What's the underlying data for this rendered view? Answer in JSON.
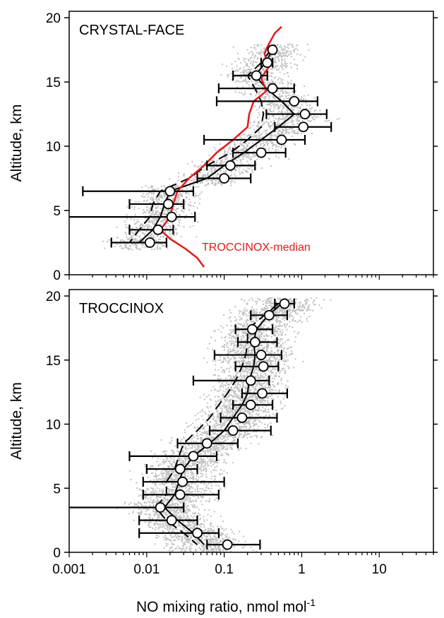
{
  "chart_data": [
    {
      "type": "scatter",
      "title": "CRYSTAL-FACE",
      "ylabel": "Altitude, km",
      "xlabel": "",
      "x_scale": "log",
      "xlim": [
        0.001,
        50
      ],
      "ylim": [
        0,
        20.5
      ],
      "y_ticks": [
        "0",
        "5",
        "10",
        "15",
        "20"
      ],
      "grid": false,
      "colors": {
        "scatter": "#c0c0c0",
        "line": "#000000",
        "median": "#e41a1c"
      },
      "markers": [
        {
          "alt": 17.5,
          "x": 0.42,
          "lo": 0.4,
          "hi": 0.45
        },
        {
          "alt": 16.5,
          "x": 0.36,
          "lo": 0.3,
          "hi": 0.42
        },
        {
          "alt": 15.5,
          "x": 0.26,
          "lo": 0.13,
          "hi": 0.36
        },
        {
          "alt": 14.5,
          "x": 0.42,
          "lo": 0.085,
          "hi": 0.8
        },
        {
          "alt": 13.5,
          "x": 0.8,
          "lo": 0.08,
          "hi": 1.6
        },
        {
          "alt": 12.5,
          "x": 1.1,
          "lo": 0.35,
          "hi": 2.1
        },
        {
          "alt": 11.5,
          "x": 1.05,
          "lo": 0.45,
          "hi": 2.4
        },
        {
          "alt": 10.5,
          "x": 0.55,
          "lo": 0.055,
          "hi": 1.1
        },
        {
          "alt": 9.5,
          "x": 0.3,
          "lo": 0.13,
          "hi": 0.62
        },
        {
          "alt": 8.5,
          "x": 0.12,
          "lo": 0.06,
          "hi": 0.25
        },
        {
          "alt": 7.5,
          "x": 0.1,
          "lo": 0.045,
          "hi": 0.22
        },
        {
          "alt": 6.5,
          "x": 0.02,
          "lo": 0.0015,
          "hi": 0.04
        },
        {
          "alt": 5.5,
          "x": 0.019,
          "lo": 0.006,
          "hi": 0.03
        },
        {
          "alt": 4.5,
          "x": 0.021,
          "lo": 0.0009,
          "hi": 0.042
        },
        {
          "alt": 3.5,
          "x": 0.014,
          "lo": 0.006,
          "hi": 0.022
        },
        {
          "alt": 2.5,
          "x": 0.011,
          "lo": 0.0035,
          "hi": 0.018
        }
      ],
      "mean_line": [
        {
          "alt": 17.5,
          "x": 0.42
        },
        {
          "alt": 16.5,
          "x": 0.34
        },
        {
          "alt": 15.5,
          "x": 0.25
        },
        {
          "alt": 14.5,
          "x": 0.35
        },
        {
          "alt": 13.5,
          "x": 0.55
        },
        {
          "alt": 12.5,
          "x": 0.8
        },
        {
          "alt": 11.5,
          "x": 0.5
        },
        {
          "alt": 10.5,
          "x": 0.3
        },
        {
          "alt": 9.5,
          "x": 0.18
        },
        {
          "alt": 8.5,
          "x": 0.1
        },
        {
          "alt": 7.5,
          "x": 0.06
        },
        {
          "alt": 6.5,
          "x": 0.02
        },
        {
          "alt": 5.5,
          "x": 0.017
        },
        {
          "alt": 4.5,
          "x": 0.015
        },
        {
          "alt": 3.5,
          "x": 0.012
        },
        {
          "alt": 2.5,
          "x": 0.008
        }
      ],
      "dashed_line": [
        {
          "alt": 17.5,
          "x": 0.4
        },
        {
          "alt": 16.5,
          "x": 0.3
        },
        {
          "alt": 15.5,
          "x": 0.2
        },
        {
          "alt": 14.5,
          "x": 0.25
        },
        {
          "alt": 13.5,
          "x": 0.3
        },
        {
          "alt": 12.5,
          "x": 0.32
        },
        {
          "alt": 11.5,
          "x": 0.3
        },
        {
          "alt": 10.5,
          "x": 0.2
        },
        {
          "alt": 9.5,
          "x": 0.12
        },
        {
          "alt": 8.5,
          "x": 0.06
        },
        {
          "alt": 7.5,
          "x": 0.035
        },
        {
          "alt": 6.5,
          "x": 0.015
        },
        {
          "alt": 5.5,
          "x": 0.012
        },
        {
          "alt": 4.5,
          "x": 0.011
        },
        {
          "alt": 3.5,
          "x": 0.008
        },
        {
          "alt": 2.5,
          "x": 0.006
        }
      ],
      "median_line": {
        "name": "TROCCINOX-median",
        "points": [
          {
            "alt": 19.3,
            "x": 0.55
          },
          {
            "alt": 18.8,
            "x": 0.45
          },
          {
            "alt": 18.0,
            "x": 0.38
          },
          {
            "alt": 17.2,
            "x": 0.33
          },
          {
            "alt": 16.2,
            "x": 0.38
          },
          {
            "alt": 15.3,
            "x": 0.3
          },
          {
            "alt": 14.3,
            "x": 0.35
          },
          {
            "alt": 13.5,
            "x": 0.24
          },
          {
            "alt": 12.5,
            "x": 0.21
          },
          {
            "alt": 11.5,
            "x": 0.2
          },
          {
            "alt": 10.5,
            "x": 0.13
          },
          {
            "alt": 9.5,
            "x": 0.08
          },
          {
            "alt": 8.5,
            "x": 0.055
          },
          {
            "alt": 7.5,
            "x": 0.035
          },
          {
            "alt": 6.5,
            "x": 0.025
          },
          {
            "alt": 5.5,
            "x": 0.022
          },
          {
            "alt": 4.5,
            "x": 0.02
          },
          {
            "alt": 3.5,
            "x": 0.015
          },
          {
            "alt": 2.8,
            "x": 0.02
          },
          {
            "alt": 2.0,
            "x": 0.032
          },
          {
            "alt": 1.3,
            "x": 0.045
          },
          {
            "alt": 0.6,
            "x": 0.055
          }
        ]
      }
    },
    {
      "type": "scatter",
      "title": "TROCCINOX",
      "ylabel": "Altitude, km",
      "xlabel": "NO mixing ratio, nmol mol",
      "xlabel_superscript": "-1",
      "x_scale": "log",
      "xlim": [
        0.001,
        50
      ],
      "ylim": [
        0,
        20.5
      ],
      "x_ticks": [
        "0.001",
        "0.01",
        "0.1",
        "1",
        "10"
      ],
      "y_ticks": [
        "0",
        "5",
        "10",
        "15",
        "20"
      ],
      "grid": false,
      "colors": {
        "scatter": "#c0c0c0",
        "line": "#000000"
      },
      "markers": [
        {
          "alt": 19.4,
          "x": 0.6,
          "lo": 0.45,
          "hi": 0.8
        },
        {
          "alt": 18.5,
          "x": 0.38,
          "lo": 0.22,
          "hi": 0.65
        },
        {
          "alt": 17.4,
          "x": 0.23,
          "lo": 0.14,
          "hi": 0.42
        },
        {
          "alt": 16.4,
          "x": 0.25,
          "lo": 0.15,
          "hi": 0.48
        },
        {
          "alt": 15.4,
          "x": 0.3,
          "lo": 0.075,
          "hi": 0.55
        },
        {
          "alt": 14.5,
          "x": 0.32,
          "lo": 0.14,
          "hi": 0.5
        },
        {
          "alt": 13.4,
          "x": 0.22,
          "lo": 0.04,
          "hi": 0.38
        },
        {
          "alt": 12.4,
          "x": 0.31,
          "lo": 0.17,
          "hi": 0.65
        },
        {
          "alt": 11.5,
          "x": 0.22,
          "lo": 0.13,
          "hi": 0.42
        },
        {
          "alt": 10.5,
          "x": 0.17,
          "lo": 0.09,
          "hi": 0.48
        },
        {
          "alt": 9.5,
          "x": 0.13,
          "lo": 0.065,
          "hi": 0.4
        },
        {
          "alt": 8.5,
          "x": 0.06,
          "lo": 0.025,
          "hi": 0.15
        },
        {
          "alt": 7.5,
          "x": 0.04,
          "lo": 0.006,
          "hi": 0.08
        },
        {
          "alt": 6.5,
          "x": 0.027,
          "lo": 0.01,
          "hi": 0.045
        },
        {
          "alt": 5.5,
          "x": 0.029,
          "lo": 0.009,
          "hi": 0.1
        },
        {
          "alt": 4.5,
          "x": 0.027,
          "lo": 0.009,
          "hi": 0.085
        },
        {
          "alt": 3.5,
          "x": 0.015,
          "lo": 0.0008,
          "hi": 0.03
        },
        {
          "alt": 2.5,
          "x": 0.021,
          "lo": 0.008,
          "hi": 0.045
        },
        {
          "alt": 1.5,
          "x": 0.045,
          "lo": 0.008,
          "hi": 0.085
        },
        {
          "alt": 0.6,
          "x": 0.11,
          "lo": 0.06,
          "hi": 0.29
        }
      ],
      "mean_line": [
        {
          "alt": 19.4,
          "x": 0.55
        },
        {
          "alt": 18.5,
          "x": 0.37
        },
        {
          "alt": 17.4,
          "x": 0.26
        },
        {
          "alt": 16.4,
          "x": 0.24
        },
        {
          "alt": 15.4,
          "x": 0.25
        },
        {
          "alt": 14.5,
          "x": 0.24
        },
        {
          "alt": 13.4,
          "x": 0.21
        },
        {
          "alt": 12.4,
          "x": 0.2
        },
        {
          "alt": 11.5,
          "x": 0.17
        },
        {
          "alt": 10.5,
          "x": 0.13
        },
        {
          "alt": 9.5,
          "x": 0.1
        },
        {
          "alt": 8.5,
          "x": 0.065
        },
        {
          "alt": 7.5,
          "x": 0.04
        },
        {
          "alt": 6.5,
          "x": 0.03
        },
        {
          "alt": 5.5,
          "x": 0.026
        },
        {
          "alt": 4.5,
          "x": 0.023
        },
        {
          "alt": 3.5,
          "x": 0.017
        },
        {
          "alt": 2.5,
          "x": 0.025
        },
        {
          "alt": 1.5,
          "x": 0.04
        },
        {
          "alt": 0.6,
          "x": 0.055
        }
      ],
      "dashed_line": [
        {
          "alt": 19.4,
          "x": 0.5
        },
        {
          "alt": 18.5,
          "x": 0.33
        },
        {
          "alt": 17.4,
          "x": 0.2
        },
        {
          "alt": 16.4,
          "x": 0.2
        },
        {
          "alt": 15.4,
          "x": 0.19
        },
        {
          "alt": 14.5,
          "x": 0.17
        },
        {
          "alt": 13.4,
          "x": 0.14
        },
        {
          "alt": 12.4,
          "x": 0.11
        },
        {
          "alt": 11.5,
          "x": 0.085
        },
        {
          "alt": 10.5,
          "x": 0.065
        },
        {
          "alt": 9.5,
          "x": 0.045
        },
        {
          "alt": 8.5,
          "x": 0.03
        },
        {
          "alt": 7.5,
          "x": 0.026
        },
        {
          "alt": 6.5,
          "x": 0.023
        },
        {
          "alt": 5.5,
          "x": 0.018
        },
        {
          "alt": 4.5,
          "x": 0.018
        },
        {
          "alt": 3.5,
          "x": 0.013
        },
        {
          "alt": 2.5,
          "x": 0.018
        },
        {
          "alt": 1.5,
          "x": 0.03
        },
        {
          "alt": 0.6,
          "x": 0.045
        }
      ]
    }
  ]
}
